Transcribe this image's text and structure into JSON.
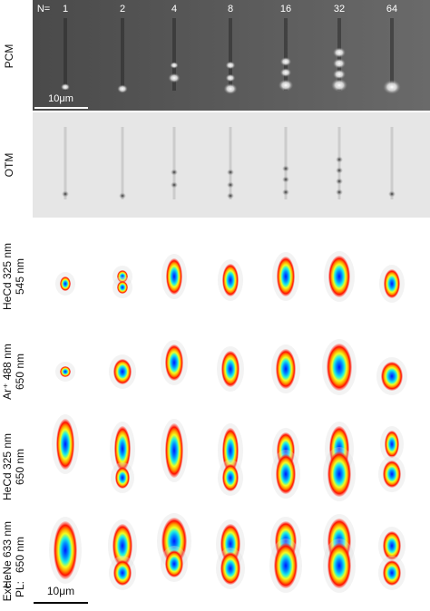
{
  "panels": {
    "pcm": {
      "label": "PCM",
      "scale_bar": "10μm"
    },
    "otm": {
      "label": "OTM"
    },
    "columns": [
      "N=",
      "1",
      "2",
      "4",
      "8",
      "16",
      "32",
      "64"
    ],
    "rows": [
      {
        "excitation": "HeCd 325 nm",
        "emission": "545 nm"
      },
      {
        "excitation": "Ar⁺ 488 nm",
        "emission": "650 nm"
      },
      {
        "excitation": "HeCd 325 nm",
        "emission": "650 nm"
      },
      {
        "excitation": "HeNe 633 nm",
        "emission": "650 nm"
      }
    ],
    "legend": {
      "excitation": "Exc.:",
      "emission": "PL:"
    },
    "scale_bar": "10μm"
  }
}
